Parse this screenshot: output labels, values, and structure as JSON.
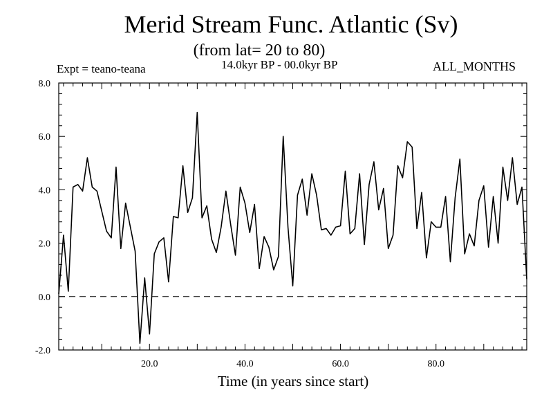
{
  "chart_data": {
    "type": "line",
    "title": "Merid Stream Func. Atlantic (Sv)",
    "subtitle": "(from lat= 20 to 80)",
    "experiment_label": "Expt = teano-teana",
    "period_label": "14.0kyr BP - 00.0kyr BP",
    "months_label": "ALL_MONTHS",
    "xlabel": "Time (in years since start)",
    "ylabel": "",
    "xlim": [
      1,
      99
    ],
    "ylim": [
      -2.0,
      8.0
    ],
    "xticks": [
      20,
      40,
      60,
      80
    ],
    "xtick_labels": [
      "20.0",
      "40.0",
      "60.0",
      "80.0"
    ],
    "yticks": [
      -2,
      0,
      2,
      4,
      6,
      8
    ],
    "ytick_labels": [
      "-2.0",
      "0.0",
      "2.0",
      "4.0",
      "6.0",
      "8.0"
    ],
    "reference_line": {
      "y": 0.0,
      "style": "dashed"
    },
    "series": [
      {
        "name": "Merid Stream Func.",
        "x": [
          1,
          2,
          3,
          4,
          5,
          6,
          7,
          8,
          9,
          10,
          11,
          12,
          13,
          14,
          15,
          16,
          17,
          18,
          19,
          20,
          21,
          22,
          23,
          24,
          25,
          26,
          27,
          28,
          29,
          30,
          31,
          32,
          33,
          34,
          35,
          36,
          37,
          38,
          39,
          40,
          41,
          42,
          43,
          44,
          45,
          46,
          47,
          48,
          49,
          50,
          51,
          52,
          53,
          54,
          55,
          56,
          57,
          58,
          59,
          60,
          61,
          62,
          63,
          64,
          65,
          66,
          67,
          68,
          69,
          70,
          71,
          72,
          73,
          74,
          75,
          76,
          77,
          78,
          79,
          80,
          81,
          82,
          83,
          84,
          85,
          86,
          87,
          88,
          89,
          90,
          91,
          92,
          93,
          94,
          95,
          96,
          97,
          98,
          99
        ],
        "values": [
          0.1,
          2.3,
          0.2,
          4.1,
          4.2,
          3.95,
          5.2,
          4.1,
          3.95,
          3.2,
          2.45,
          2.2,
          4.85,
          1.8,
          3.5,
          2.6,
          1.7,
          -1.75,
          0.7,
          -1.4,
          1.6,
          2.05,
          2.2,
          0.55,
          3.0,
          2.95,
          4.9,
          3.15,
          3.7,
          6.9,
          2.95,
          3.4,
          2.15,
          1.65,
          2.6,
          3.95,
          2.7,
          1.55,
          4.1,
          3.5,
          2.4,
          3.45,
          1.05,
          2.25,
          1.85,
          1.0,
          1.5,
          6.0,
          2.6,
          0.4,
          3.8,
          4.4,
          3.05,
          4.6,
          3.8,
          2.5,
          2.55,
          2.3,
          2.6,
          2.65,
          4.7,
          2.35,
          2.55,
          4.6,
          1.95,
          4.2,
          5.05,
          3.25,
          4.05,
          1.8,
          2.3,
          4.9,
          4.45,
          5.8,
          5.6,
          2.55,
          3.9,
          1.45,
          2.8,
          2.6,
          2.6,
          3.75,
          1.3,
          3.7,
          5.15,
          1.6,
          2.35,
          1.9,
          3.6,
          4.15,
          1.85,
          3.75,
          2.0,
          4.85,
          3.6,
          5.2,
          3.45,
          4.1,
          0.65
        ]
      }
    ],
    "colors": {
      "line": "#000000",
      "axes": "#000000",
      "background": "#ffffff"
    }
  }
}
